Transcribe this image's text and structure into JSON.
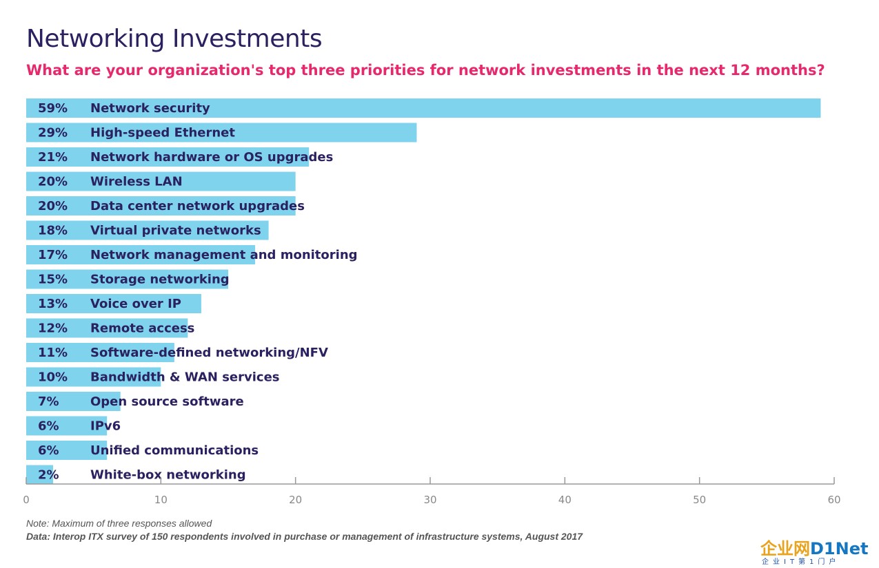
{
  "header": {
    "title": "Networking Investments",
    "subtitle": "What are your organization's top three priorities for network investments in the next 12 months?"
  },
  "chart_data": {
    "type": "bar",
    "orientation": "horizontal",
    "categories": [
      "Network security",
      "High-speed Ethernet",
      "Network hardware or OS upgrades",
      "Wireless LAN",
      "Data center network upgrades",
      "Virtual private networks",
      "Network management and monitoring",
      "Storage networking",
      "Voice over IP",
      "Remote access",
      "Software-defined networking/NFV",
      "Bandwidth & WAN services",
      "Open source software",
      "IPv6",
      "Unified communications",
      "White-box networking"
    ],
    "values": [
      59,
      29,
      21,
      20,
      20,
      18,
      17,
      15,
      13,
      12,
      11,
      10,
      7,
      6,
      6,
      2
    ],
    "value_labels": [
      "59%",
      "29%",
      "21%",
      "20%",
      "20%",
      "18%",
      "17%",
      "15%",
      "13%",
      "12%",
      "11%",
      "10%",
      "7%",
      "6%",
      "6%",
      "2%"
    ],
    "xlim": [
      0,
      60
    ],
    "xticks": [
      0,
      10,
      20,
      30,
      40,
      50,
      60
    ],
    "bar_color": "#7fd3ed",
    "grid": false
  },
  "footer": {
    "note": "Note: Maximum of three responses allowed",
    "source": "Data: Interop ITX survey of 150 respondents involved in purchase or management of infrastructure systems, August 2017"
  },
  "watermark": {
    "text_left": "企业网",
    "text_right": "D1Net",
    "tagline": "企业IT第1门户"
  }
}
